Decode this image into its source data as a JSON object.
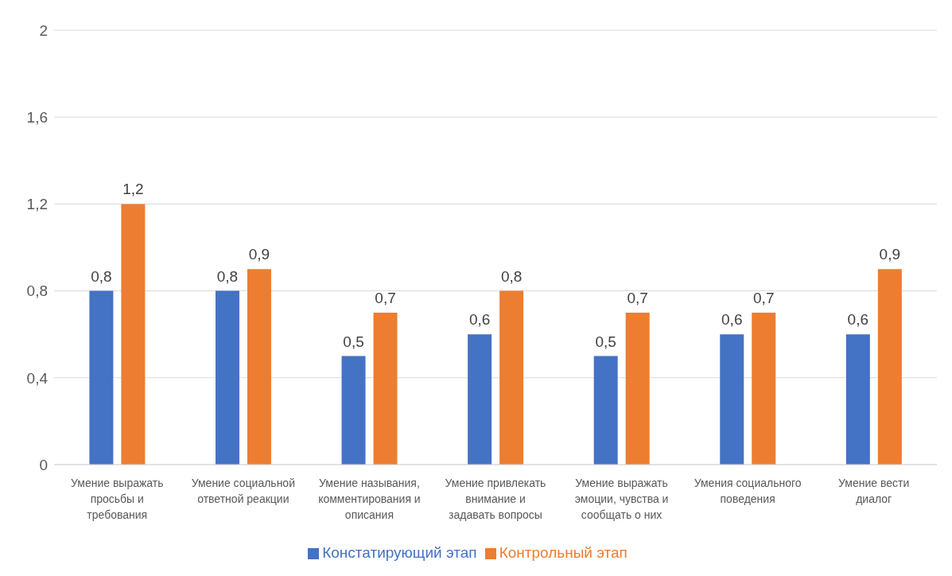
{
  "chart_data": {
    "type": "bar",
    "categories": [
      "Умение выражать просьбы и требования",
      "Умение социальной ответной реакции",
      "Умение называния, комментирования и описания",
      "Умение привлекать внимание и задавать вопросы",
      "Умение выражать эмоции, чувства и сообщать о них",
      "Умения социального поведения",
      "Умение вести диалог"
    ],
    "series": [
      {
        "name": "Констатирующий этап",
        "color": "#4472c4",
        "values": [
          0.8,
          0.8,
          0.5,
          0.6,
          0.5,
          0.6,
          0.6
        ],
        "value_labels": [
          "0,8",
          "0,8",
          "0,5",
          "0,6",
          "0,5",
          "0,6",
          "0,6"
        ]
      },
      {
        "name": "Контрольный этап",
        "color": "#ed7d31",
        "values": [
          1.2,
          0.9,
          0.7,
          0.8,
          0.7,
          0.7,
          0.9
        ],
        "value_labels": [
          "1,2",
          "0,9",
          "0,7",
          "0,8",
          "0,7",
          "0,7",
          "0,9"
        ]
      }
    ],
    "ylim": [
      0,
      2
    ],
    "yticks": [
      0,
      {
        "value": 0.4,
        "label": "0,4"
      },
      {
        "value": 0.8,
        "label": "0,8"
      },
      {
        "value": 1.2,
        "label": "1,2"
      },
      {
        "value": 1.6,
        "label": "1,6"
      },
      2
    ],
    "grid": "y",
    "legend": "bottom"
  }
}
